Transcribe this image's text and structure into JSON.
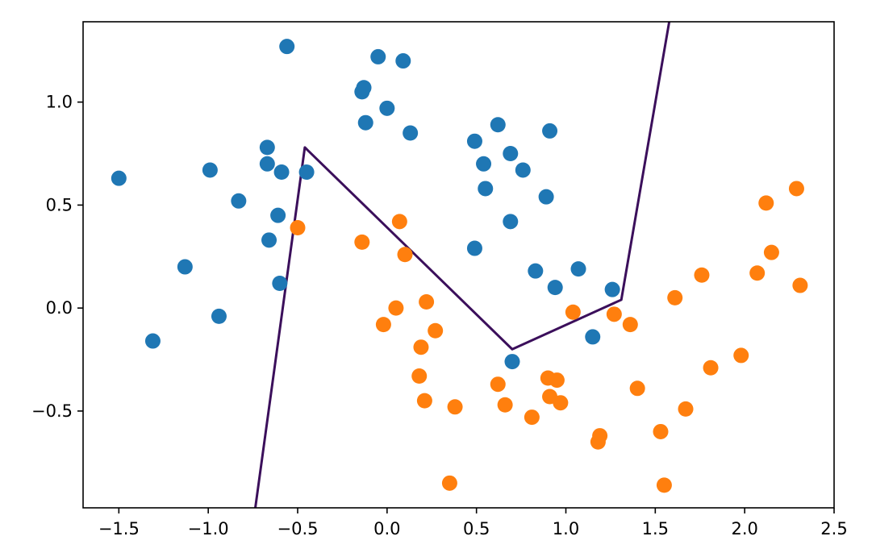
{
  "chart_data": {
    "type": "scatter",
    "title": "",
    "xlabel": "",
    "ylabel": "",
    "xlim": [
      -1.7,
      2.5
    ],
    "ylim": [
      -0.97,
      1.39
    ],
    "grid": false,
    "legend": "none",
    "x_ticks": [
      -1.5,
      -1.0,
      -0.5,
      0.0,
      0.5,
      1.0,
      1.5,
      2.0,
      2.5
    ],
    "x_tick_labels": [
      "−1.5",
      "−1.0",
      "−0.5",
      "0.0",
      "0.5",
      "1.0",
      "1.5",
      "2.0",
      "2.5"
    ],
    "y_ticks": [
      -0.5,
      0.0,
      0.5,
      1.0
    ],
    "y_tick_labels": [
      "−0.5",
      "0.0",
      "0.5",
      "1.0"
    ],
    "series": [
      {
        "color": "#1f77b4",
        "points": [
          [
            -1.5,
            0.63
          ],
          [
            -1.31,
            -0.16
          ],
          [
            -1.13,
            0.2
          ],
          [
            -0.99,
            0.67
          ],
          [
            -0.94,
            -0.04
          ],
          [
            -0.83,
            0.52
          ],
          [
            -0.67,
            0.78
          ],
          [
            -0.67,
            0.7
          ],
          [
            -0.66,
            0.33
          ],
          [
            -0.61,
            0.45
          ],
          [
            -0.6,
            0.12
          ],
          [
            -0.59,
            0.66
          ],
          [
            -0.56,
            1.27
          ],
          [
            -0.45,
            0.66
          ],
          [
            -0.14,
            1.05
          ],
          [
            -0.13,
            1.07
          ],
          [
            -0.12,
            0.9
          ],
          [
            -0.05,
            1.22
          ],
          [
            0.0,
            0.97
          ],
          [
            0.09,
            1.2
          ],
          [
            0.13,
            0.85
          ],
          [
            0.49,
            0.81
          ],
          [
            0.49,
            0.29
          ],
          [
            0.54,
            0.7
          ],
          [
            0.55,
            0.58
          ],
          [
            0.62,
            0.89
          ],
          [
            0.69,
            0.75
          ],
          [
            0.69,
            0.42
          ],
          [
            0.7,
            -0.26
          ],
          [
            0.76,
            0.67
          ],
          [
            0.83,
            0.18
          ],
          [
            0.89,
            0.54
          ],
          [
            0.91,
            0.86
          ],
          [
            0.94,
            0.1
          ],
          [
            1.07,
            0.19
          ],
          [
            1.15,
            -0.14
          ],
          [
            1.26,
            0.09
          ]
        ]
      },
      {
        "color": "#ff7f0e",
        "points": [
          [
            -0.5,
            0.39
          ],
          [
            -0.14,
            0.32
          ],
          [
            -0.02,
            -0.08
          ],
          [
            0.05,
            0.0
          ],
          [
            0.07,
            0.42
          ],
          [
            0.1,
            0.26
          ],
          [
            0.18,
            -0.33
          ],
          [
            0.19,
            -0.19
          ],
          [
            0.21,
            -0.45
          ],
          [
            0.22,
            0.03
          ],
          [
            0.27,
            -0.11
          ],
          [
            0.35,
            -0.85
          ],
          [
            0.38,
            -0.48
          ],
          [
            0.62,
            -0.37
          ],
          [
            0.66,
            -0.47
          ],
          [
            0.81,
            -0.53
          ],
          [
            0.9,
            -0.34
          ],
          [
            0.91,
            -0.43
          ],
          [
            0.95,
            -0.35
          ],
          [
            0.97,
            -0.46
          ],
          [
            1.04,
            -0.02
          ],
          [
            1.18,
            -0.65
          ],
          [
            1.19,
            -0.62
          ],
          [
            1.27,
            -0.03
          ],
          [
            1.36,
            -0.08
          ],
          [
            1.4,
            -0.39
          ],
          [
            1.53,
            -0.6
          ],
          [
            1.55,
            -0.86
          ],
          [
            1.61,
            0.05
          ],
          [
            1.67,
            -0.49
          ],
          [
            1.76,
            0.16
          ],
          [
            1.81,
            -0.29
          ],
          [
            1.98,
            -0.23
          ],
          [
            2.07,
            0.17
          ],
          [
            2.12,
            0.51
          ],
          [
            2.15,
            0.27
          ],
          [
            2.29,
            0.58
          ],
          [
            2.31,
            0.11
          ]
        ]
      }
    ],
    "boundary": {
      "color": "#3b0f5b",
      "points": [
        [
          -0.74,
          -0.99
        ],
        [
          -0.46,
          0.78
        ],
        [
          0.7,
          -0.2
        ],
        [
          1.31,
          0.04
        ],
        [
          1.58,
          1.4
        ]
      ]
    }
  }
}
